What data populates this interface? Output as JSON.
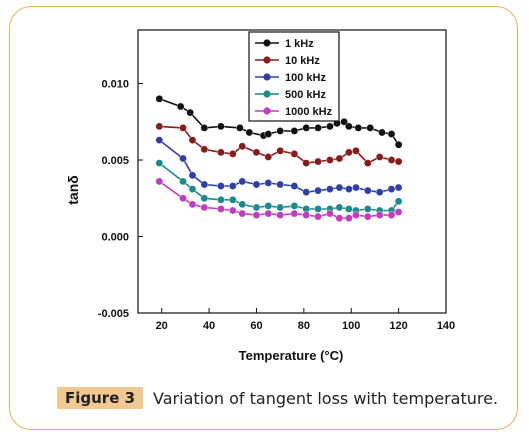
{
  "figure": {
    "label": "Figure 3",
    "caption": "Variation of tangent loss with temperature."
  },
  "chart_data": {
    "type": "line",
    "xlabel": "Temperature (°C)",
    "ylabel": "tanδ",
    "xlim": [
      10,
      140
    ],
    "ylim": [
      -0.005,
      0.0135
    ],
    "xticks": [
      20,
      40,
      60,
      80,
      100,
      120,
      140
    ],
    "yticks": [
      -0.005,
      0.0,
      0.005,
      0.01
    ],
    "ytick_labels": [
      "-0.005",
      "0.000",
      "0.005",
      "0.010"
    ],
    "legend_position": "top-center",
    "series": [
      {
        "name": "1 kHz",
        "color": "#111111",
        "x": [
          19,
          28,
          32,
          38,
          45,
          53,
          57,
          63,
          65,
          70,
          76,
          81,
          86,
          91,
          94,
          97,
          99,
          103,
          108,
          113,
          117,
          120
        ],
        "y": [
          0.009,
          0.0085,
          0.0081,
          0.0071,
          0.0072,
          0.0071,
          0.0068,
          0.0066,
          0.0067,
          0.0069,
          0.0069,
          0.0071,
          0.0071,
          0.0072,
          0.0074,
          0.0075,
          0.0072,
          0.0071,
          0.0071,
          0.0068,
          0.0067,
          0.006
        ]
      },
      {
        "name": "10 kHz",
        "color": "#8b1a1a",
        "x": [
          19,
          29,
          33,
          38,
          45,
          50,
          54,
          60,
          65,
          70,
          76,
          81,
          86,
          91,
          95,
          99,
          102,
          107,
          112,
          117,
          120
        ],
        "y": [
          0.0072,
          0.0071,
          0.0063,
          0.0057,
          0.0055,
          0.0054,
          0.0059,
          0.0055,
          0.0052,
          0.0056,
          0.0054,
          0.0048,
          0.0049,
          0.005,
          0.0051,
          0.0055,
          0.0056,
          0.0048,
          0.0052,
          0.005,
          0.0049
        ]
      },
      {
        "name": "100 kHz",
        "color": "#2f3fa8",
        "x": [
          19,
          29,
          33,
          38,
          45,
          50,
          54,
          60,
          65,
          70,
          76,
          81,
          86,
          91,
          95,
          99,
          102,
          107,
          112,
          117,
          120
        ],
        "y": [
          0.0063,
          0.0051,
          0.004,
          0.0034,
          0.0033,
          0.0033,
          0.0036,
          0.0034,
          0.0035,
          0.0034,
          0.0033,
          0.0029,
          0.003,
          0.0031,
          0.0032,
          0.0031,
          0.0032,
          0.003,
          0.0029,
          0.0031,
          0.0032
        ]
      },
      {
        "name": "500 kHz",
        "color": "#1a8a8a",
        "x": [
          19,
          29,
          33,
          38,
          45,
          50,
          54,
          60,
          65,
          70,
          76,
          81,
          86,
          91,
          95,
          99,
          102,
          107,
          112,
          117,
          120
        ],
        "y": [
          0.0048,
          0.0036,
          0.0031,
          0.0025,
          0.0024,
          0.0024,
          0.0021,
          0.0019,
          0.002,
          0.0019,
          0.002,
          0.0018,
          0.0018,
          0.0018,
          0.0019,
          0.0018,
          0.0017,
          0.0018,
          0.0017,
          0.0017,
          0.0023
        ]
      },
      {
        "name": "1000 kHz",
        "color": "#c23cc2",
        "x": [
          19,
          29,
          33,
          38,
          45,
          50,
          54,
          60,
          65,
          70,
          76,
          81,
          86,
          91,
          95,
          99,
          102,
          107,
          112,
          117,
          120
        ],
        "y": [
          0.0036,
          0.0025,
          0.0021,
          0.0019,
          0.0018,
          0.0017,
          0.0015,
          0.0014,
          0.0015,
          0.0014,
          0.0015,
          0.0014,
          0.0013,
          0.0015,
          0.0012,
          0.0012,
          0.0014,
          0.0013,
          0.0014,
          0.0014,
          0.0016
        ]
      }
    ]
  }
}
